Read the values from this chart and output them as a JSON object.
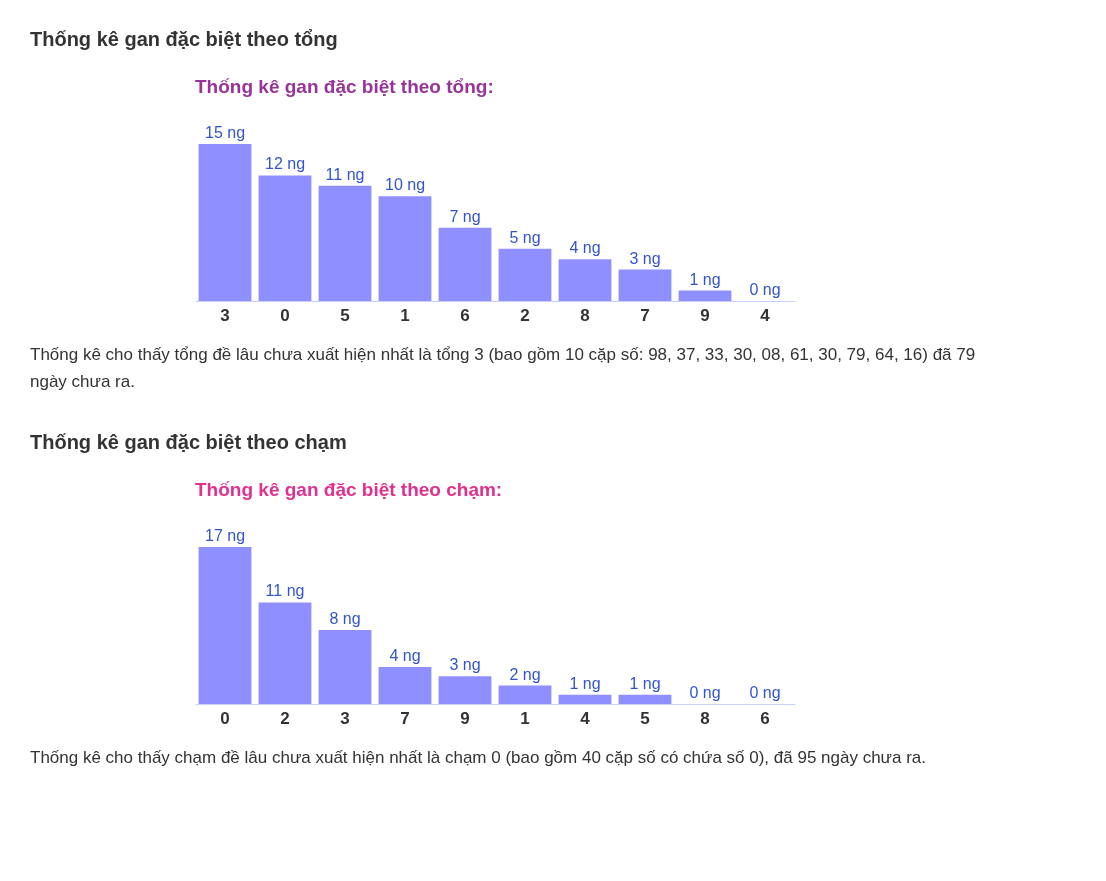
{
  "chart_data": [
    {
      "type": "bar",
      "title": "Thống kê gan đặc biệt theo tổng:",
      "categories": [
        "3",
        "0",
        "5",
        "1",
        "6",
        "2",
        "8",
        "7",
        "9",
        "4"
      ],
      "values": [
        15,
        12,
        11,
        10,
        7,
        5,
        4,
        3,
        1,
        0
      ],
      "color": "#8f8fff",
      "value_labels": [
        "15 ng",
        "12 ng",
        "11 ng",
        "10 ng",
        "7 ng",
        "5 ng",
        "4 ng",
        "3 ng",
        "1 ng",
        "0 ng"
      ],
      "annotations": [
        "Thống kê gan đặc biệt theo tổng",
        "Thống kê cho thấy tổng đề lâu chưa xuất hiện nhất là tổng 3 (bao gồm 10 cặp số: 98, 37, 33, 30, 08, 61, 30, 79, 64, 16) đã 79 ngày chưa ra."
      ]
    },
    {
      "type": "bar",
      "title": "Thống kê gan đặc biệt theo chạm:",
      "categories": [
        "0",
        "2",
        "3",
        "7",
        "9",
        "1",
        "4",
        "5",
        "8",
        "6"
      ],
      "values": [
        17,
        11,
        8,
        4,
        3,
        2,
        1,
        1,
        0,
        0
      ],
      "color": "#8f8fff",
      "value_labels": [
        "17 ng",
        "11 ng",
        "8 ng",
        "4 ng",
        "3 ng",
        "2 ng",
        "1 ng",
        "1 ng",
        "0 ng",
        "0 ng"
      ],
      "annotations": [
        "Thống kê gan đặc biệt theo chạm",
        "Thống kê cho thấy chạm đề lâu chưa xuất hiện nhất là chạm 0 (bao gồm 40 cặp số có chứa số 0), đã 95 ngày chưa ra."
      ]
    }
  ]
}
